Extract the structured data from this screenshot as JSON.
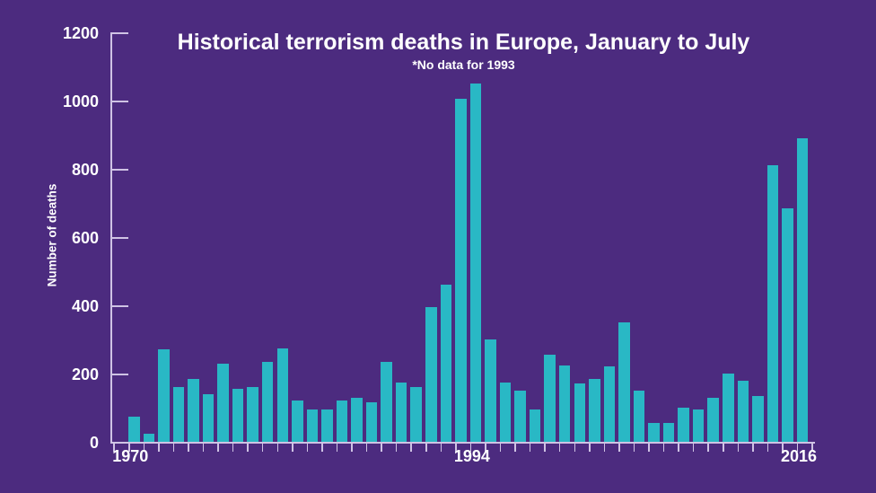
{
  "chart_data": {
    "type": "bar",
    "title": "Historical terrorism deaths in Europe, January to July",
    "subtitle": "*No data for 1993",
    "ylabel": "Number of deaths",
    "xlabel": "",
    "ylim": [
      0,
      1200
    ],
    "y_ticks": [
      0,
      200,
      400,
      600,
      800,
      1000,
      1200
    ],
    "x_tick_labels_shown": [
      "1970",
      "1994",
      "2016"
    ],
    "grid": "off",
    "legend": "none",
    "note": "No bar plotted for 1993 (no data); years run consecutively from 1970 to 2016 skipping 1993",
    "categories": [
      "1970",
      "1971",
      "1972",
      "1973",
      "1974",
      "1975",
      "1976",
      "1977",
      "1978",
      "1979",
      "1980",
      "1981",
      "1982",
      "1983",
      "1984",
      "1985",
      "1986",
      "1987",
      "1988",
      "1989",
      "1990",
      "1991",
      "1992",
      "1994",
      "1995",
      "1996",
      "1997",
      "1998",
      "1999",
      "2000",
      "2001",
      "2002",
      "2003",
      "2004",
      "2005",
      "2006",
      "2007",
      "2008",
      "2009",
      "2010",
      "2011",
      "2012",
      "2013",
      "2014",
      "2015",
      "2016"
    ],
    "values": [
      75,
      25,
      270,
      160,
      185,
      140,
      230,
      155,
      160,
      235,
      275,
      120,
      95,
      95,
      120,
      130,
      115,
      235,
      175,
      160,
      395,
      460,
      1005,
      1050,
      300,
      175,
      150,
      95,
      255,
      225,
      170,
      185,
      220,
      350,
      150,
      55,
      55,
      100,
      95,
      130,
      200,
      180,
      135,
      810,
      685,
      890
    ],
    "colors": {
      "background": "#4c2b7f",
      "bar": "#29b8c5",
      "axis": "#cfc3e4",
      "text": "#ffffff"
    }
  }
}
